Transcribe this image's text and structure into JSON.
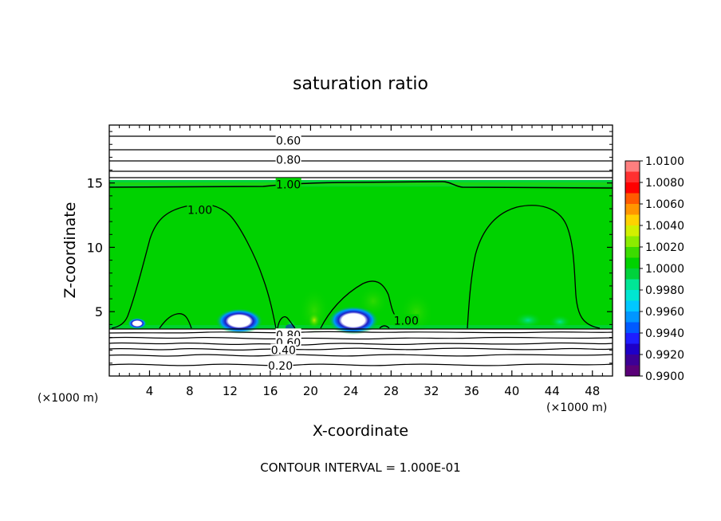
{
  "chart_data": {
    "type": "heatmap",
    "title": "saturation ratio",
    "xlabel": "X-coordinate",
    "ylabel": "Z-coordinate",
    "x_unit_label": "(×1000 m)",
    "x_unit_label_right": "(×1000 m)",
    "xlim": [
      0,
      50
    ],
    "ylim": [
      0,
      19.5
    ],
    "x_ticks": [
      4,
      8,
      12,
      16,
      20,
      24,
      28,
      32,
      36,
      40,
      44,
      48
    ],
    "y_ticks": [
      5,
      10,
      15
    ],
    "footer": "CONTOUR INTERVAL = 1.000E-01",
    "grid": false,
    "colorbar": {
      "labels": [
        "1.0100",
        "1.0080",
        "1.0060",
        "1.0040",
        "1.0020",
        "1.0000",
        "0.9980",
        "0.9960",
        "0.9940",
        "0.9920",
        "0.9900"
      ],
      "colors": [
        "#ff7f7f",
        "#ff3030",
        "#ff0000",
        "#ff5a00",
        "#ff9600",
        "#ffd200",
        "#d2f000",
        "#8cec00",
        "#3cdc00",
        "#00d200",
        "#00d23c",
        "#00e696",
        "#00e6d2",
        "#00c8ff",
        "#0096ff",
        "#005aff",
        "#1e1eff",
        "#1e00c8",
        "#3c0096",
        "#5a0078"
      ]
    },
    "contour_labels": [
      {
        "text": "0.60",
        "x": 17.8,
        "y": 18.3
      },
      {
        "text": "0.80",
        "x": 17.8,
        "y": 16.8
      },
      {
        "text": "1.00",
        "x": 17.8,
        "y": 14.9
      },
      {
        "text": "1.00",
        "x": 9.0,
        "y": 12.9
      },
      {
        "text": "1.00",
        "x": 29.5,
        "y": 4.3
      },
      {
        "text": "0.80",
        "x": 17.8,
        "y": 3.2
      },
      {
        "text": "0.60",
        "x": 17.8,
        "y": 2.6
      },
      {
        "text": "0.40",
        "x": 17.3,
        "y": 2.0
      },
      {
        "text": "0.20",
        "x": 17.0,
        "y": 0.8
      }
    ],
    "upper_contours": [
      0.6,
      0.8,
      1.0
    ]
  }
}
